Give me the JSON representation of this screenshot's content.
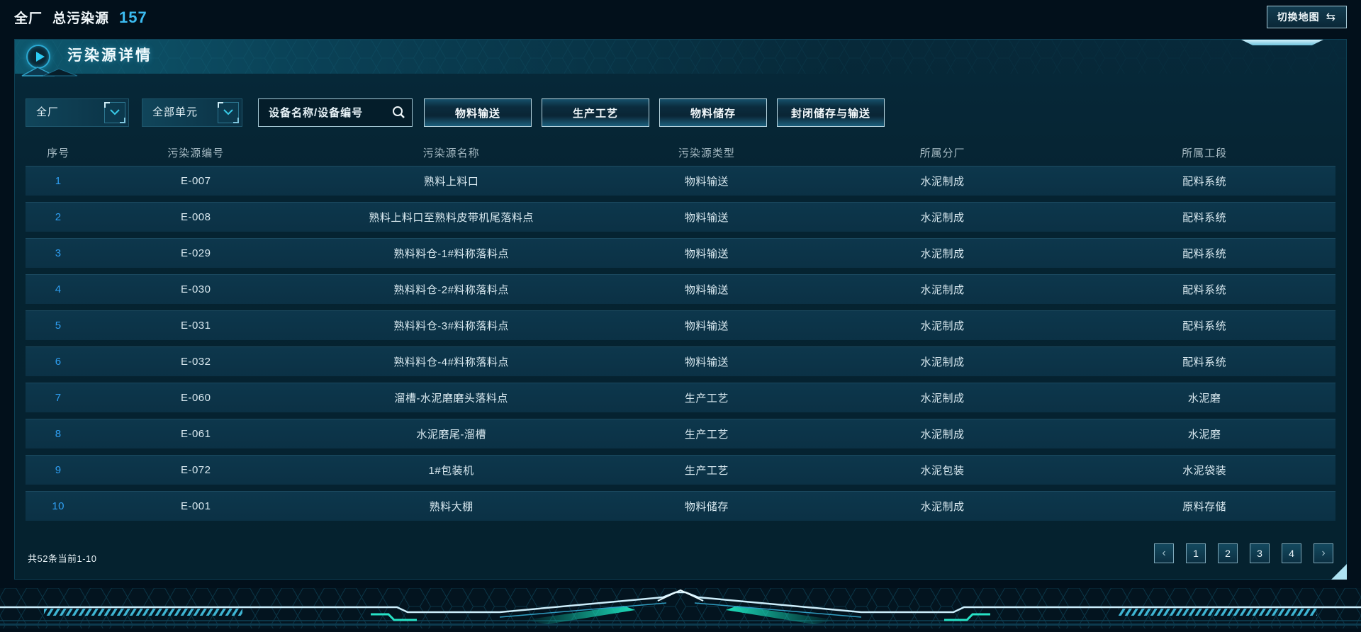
{
  "topbar": {
    "plant": "全厂",
    "total_label": "总污染源",
    "total_value": "157",
    "switch_map": "切换地图",
    "switch_icon": "⇆"
  },
  "panel": {
    "title": "污染源详情",
    "filters": {
      "plant_select": {
        "value": "全厂"
      },
      "unit_select": {
        "value": "全部单元"
      },
      "search": {
        "placeholder": "设备名称/设备编号"
      },
      "type_buttons": [
        "物料输送",
        "生产工艺",
        "物料储存",
        "封闭储存与输送"
      ]
    },
    "table": {
      "columns": [
        "序号",
        "污染源编号",
        "污染源名称",
        "污染源类型",
        "所属分厂",
        "所属工段"
      ],
      "rows": [
        [
          "1",
          "E-007",
          "熟料上料口",
          "物料输送",
          "水泥制成",
          "配料系统"
        ],
        [
          "2",
          "E-008",
          "熟料上料口至熟料皮带机尾落料点",
          "物料输送",
          "水泥制成",
          "配料系统"
        ],
        [
          "3",
          "E-029",
          "熟料料仓-1#料称落料点",
          "物料输送",
          "水泥制成",
          "配料系统"
        ],
        [
          "4",
          "E-030",
          "熟料料仓-2#料称落料点",
          "物料输送",
          "水泥制成",
          "配料系统"
        ],
        [
          "5",
          "E-031",
          "熟料料仓-3#料称落料点",
          "物料输送",
          "水泥制成",
          "配料系统"
        ],
        [
          "6",
          "E-032",
          "熟料料仓-4#料称落料点",
          "物料输送",
          "水泥制成",
          "配料系统"
        ],
        [
          "7",
          "E-060",
          "溜槽-水泥磨磨头落料点",
          "生产工艺",
          "水泥制成",
          "水泥磨"
        ],
        [
          "8",
          "E-061",
          "水泥磨尾-溜槽",
          "生产工艺",
          "水泥制成",
          "水泥磨"
        ],
        [
          "9",
          "E-072",
          "1#包装机",
          "生产工艺",
          "水泥包装",
          "水泥袋装"
        ],
        [
          "10",
          "E-001",
          "熟料大棚",
          "物料储存",
          "水泥制成",
          "原料存储"
        ]
      ]
    },
    "pagination": {
      "summary": "共52条当前1-10",
      "prev_icon": "‹",
      "next_icon": "›",
      "pages": [
        "1",
        "2",
        "3",
        "4"
      ]
    }
  },
  "colors": {
    "page_bg": "#02101b",
    "panel_bg": "#05222f",
    "row_bg": "#0b3246",
    "accent_cyan": "#3cbcf2",
    "link_blue": "#2f9ff2",
    "border_light": "#b9d7e2",
    "glow_green": "#17e6c0"
  }
}
